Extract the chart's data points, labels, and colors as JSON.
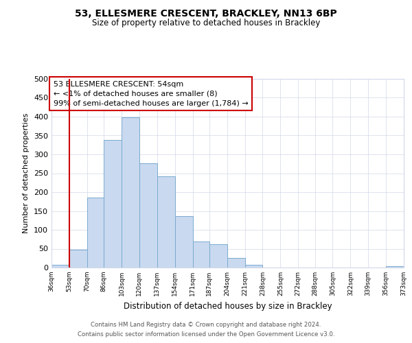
{
  "title": "53, ELLESMERE CRESCENT, BRACKLEY, NN13 6BP",
  "subtitle": "Size of property relative to detached houses in Brackley",
  "xlabel": "Distribution of detached houses by size in Brackley",
  "ylabel": "Number of detached properties",
  "bin_edges": [
    36,
    53,
    70,
    86,
    103,
    120,
    137,
    154,
    171,
    187,
    204,
    221,
    238,
    255,
    272,
    288,
    305,
    322,
    339,
    356,
    373
  ],
  "bar_heights": [
    8,
    47,
    185,
    338,
    398,
    277,
    241,
    136,
    70,
    62,
    26,
    8,
    0,
    0,
    0,
    0,
    0,
    0,
    0,
    3
  ],
  "bar_color": "#c9d9ef",
  "bar_edge_color": "#7aaad0",
  "tick_labels": [
    "36sqm",
    "53sqm",
    "70sqm",
    "86sqm",
    "103sqm",
    "120sqm",
    "137sqm",
    "154sqm",
    "171sqm",
    "187sqm",
    "204sqm",
    "221sqm",
    "238sqm",
    "255sqm",
    "272sqm",
    "288sqm",
    "305sqm",
    "322sqm",
    "339sqm",
    "356sqm",
    "373sqm"
  ],
  "vline_x": 53,
  "vline_color": "#cc0000",
  "ylim": [
    0,
    500
  ],
  "yticks": [
    0,
    50,
    100,
    150,
    200,
    250,
    300,
    350,
    400,
    450,
    500
  ],
  "annotation_line1": "53 ELLESMERE CRESCENT: 54sqm",
  "annotation_line2": "← <1% of detached houses are smaller (8)",
  "annotation_line3": "99% of semi-detached houses are larger (1,784) →",
  "annotation_box_color": "#ffffff",
  "annotation_box_edge_color": "#cc0000",
  "footer_line1": "Contains HM Land Registry data © Crown copyright and database right 2024.",
  "footer_line2": "Contains public sector information licensed under the Open Government Licence v3.0.",
  "background_color": "#ffffff",
  "plot_bg_color": "#ffffff",
  "grid_color": "#d0d8e8"
}
